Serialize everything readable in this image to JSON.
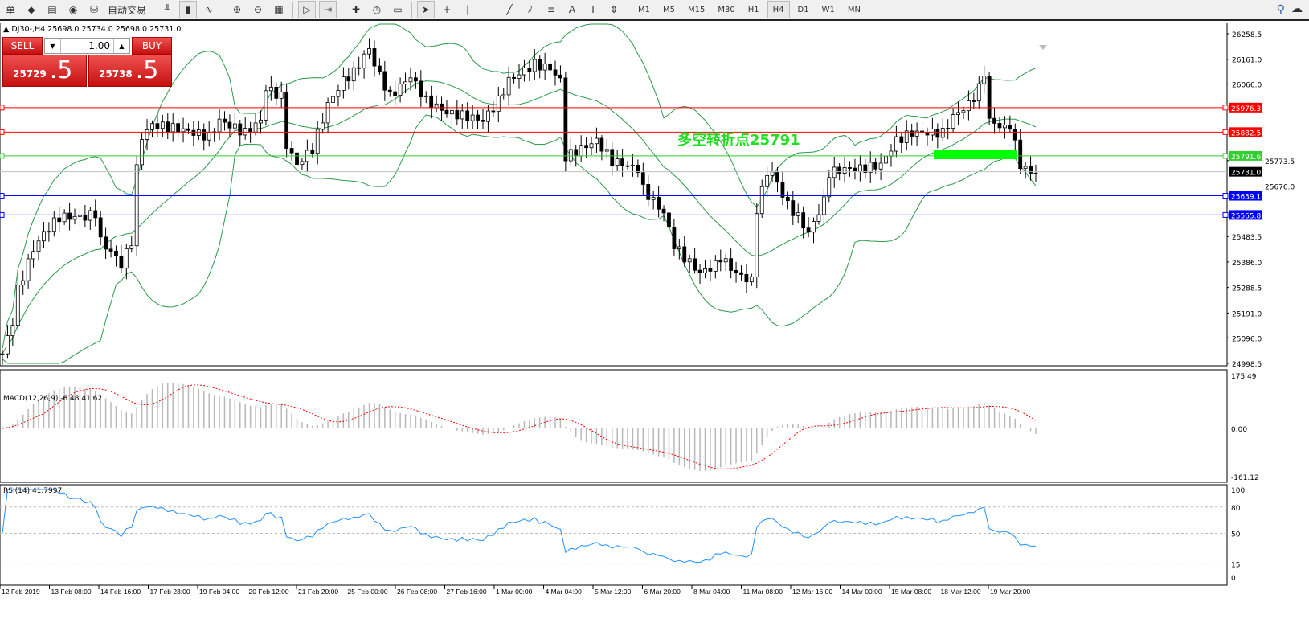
{
  "toolbar": {
    "menu_tail": "单",
    "auto_trading": "自动交易",
    "icons": [
      "market-watch-icon",
      "navigator-icon",
      "signals-icon",
      "autotrading-icon",
      "bar-chart-icon",
      "candlestick-icon",
      "line-chart-icon",
      "zoom-in-icon",
      "zoom-out-icon",
      "tile-windows-icon",
      "auto-scroll-icon",
      "chart-shift-icon",
      "new-chart-icon",
      "periodicity-icon",
      "templates-icon",
      "cursor-icon",
      "crosshair-icon",
      "vertical-line-icon",
      "horizontal-line-icon",
      "trendline-icon",
      "equidistant-channel-icon",
      "fibonacci-icon",
      "text-icon",
      "text-label-icon",
      "arrows-icon"
    ],
    "timeframes": [
      "M1",
      "M5",
      "M15",
      "M30",
      "H1",
      "H4",
      "D1",
      "W1",
      "MN"
    ],
    "active_timeframe": "H4"
  },
  "chart": {
    "symbol_info": "DJ30-,H4  25698.0 25734.0 25698.0 25731.0",
    "annotation": "多空转折点25791",
    "annotation_color": "#22dd22",
    "zone_color": "#00ff00",
    "price_axis": [
      "26258.5",
      "26161.0",
      "26066.0",
      "25773.5",
      "25676.0",
      "25483.5",
      "25386.0",
      "25288.5",
      "25191.0",
      "25096.0",
      "24998.5"
    ],
    "levels": [
      {
        "price": "25976.3",
        "color": "#ff0000"
      },
      {
        "price": "25882.5",
        "color": "#ff0000"
      },
      {
        "price": "25791.6",
        "color": "#33cc33"
      },
      {
        "price": "25731.0",
        "color": "#000000"
      },
      {
        "price": "25639.1",
        "color": "#0000ff"
      },
      {
        "price": "25565.8",
        "color": "#0000ff"
      }
    ],
    "time_axis": [
      "12 Feb 2019",
      "13 Feb 08:00",
      "14 Feb 16:00",
      "17 Feb 23:00",
      "19 Feb 04:00",
      "20 Feb 12:00",
      "21 Feb 20:00",
      "25 Feb 00:00",
      "26 Feb 08:00",
      "27 Feb 16:00",
      "1 Mar 00:00",
      "4 Mar 04:00",
      "5 Mar 12:00",
      "6 Mar 20:00",
      "8 Mar 04:00",
      "11 Mar 08:00",
      "12 Mar 16:00",
      "14 Mar 00:00",
      "15 Mar 08:00",
      "18 Mar 12:00",
      "19 Mar 20:00"
    ]
  },
  "trade_panel": {
    "sell_label": "SELL",
    "buy_label": "BUY",
    "lot": "1.00",
    "sell_price_main": "25729",
    "sell_price_pip": ".5",
    "buy_price_main": "25738",
    "buy_price_pip": ".5"
  },
  "macd": {
    "label": "MACD(12,26,9) -6.48 41.62",
    "axis": [
      "175.49",
      "0.00",
      "-161.12"
    ]
  },
  "rsi": {
    "label": "RSI(14) 41.7997",
    "axis": [
      "100",
      "80",
      "50",
      "15",
      "0"
    ]
  },
  "chart_data": {
    "type": "candlestick",
    "symbol": "DJ30-",
    "timeframe": "H4",
    "ylim": [
      24998.5,
      26258.5
    ],
    "close_waypoints": [
      [
        0,
        25035
      ],
      [
        2,
        25158
      ],
      [
        3,
        25281
      ],
      [
        6,
        25435
      ],
      [
        8,
        25496
      ],
      [
        11,
        25558
      ],
      [
        16,
        25558
      ],
      [
        18,
        25573
      ],
      [
        19,
        25466
      ],
      [
        22,
        25404
      ],
      [
        23,
        25374
      ],
      [
        25,
        25466
      ],
      [
        26,
        25742
      ],
      [
        27,
        25865
      ],
      [
        29,
        25911
      ],
      [
        34,
        25896
      ],
      [
        40,
        25865
      ],
      [
        42,
        25927
      ],
      [
        47,
        25880
      ],
      [
        50,
        25927
      ],
      [
        51,
        26050
      ],
      [
        54,
        26019
      ],
      [
        55,
        25834
      ],
      [
        57,
        25758
      ],
      [
        60,
        25819
      ],
      [
        63,
        25988
      ],
      [
        66,
        26080
      ],
      [
        68,
        26111
      ],
      [
        71,
        26203
      ],
      [
        72,
        26142
      ],
      [
        75,
        26019
      ],
      [
        79,
        26096
      ],
      [
        82,
        26003
      ],
      [
        86,
        25957
      ],
      [
        90,
        25942
      ],
      [
        93,
        25927
      ],
      [
        96,
        26003
      ],
      [
        98,
        26080
      ],
      [
        103,
        26142
      ],
      [
        106,
        26126
      ],
      [
        108,
        26080
      ],
      [
        109,
        25788
      ],
      [
        112,
        25819
      ],
      [
        115,
        25850
      ],
      [
        118,
        25773
      ],
      [
        123,
        25742
      ],
      [
        124,
        25665
      ],
      [
        128,
        25573
      ],
      [
        130,
        25450
      ],
      [
        132,
        25404
      ],
      [
        135,
        25343
      ],
      [
        138,
        25374
      ],
      [
        139,
        25404
      ],
      [
        142,
        25343
      ],
      [
        145,
        25312
      ],
      [
        146,
        25589
      ],
      [
        148,
        25727
      ],
      [
        149,
        25727
      ],
      [
        152,
        25604
      ],
      [
        154,
        25558
      ],
      [
        156,
        25496
      ],
      [
        159,
        25619
      ],
      [
        160,
        25727
      ],
      [
        163,
        25742
      ],
      [
        166,
        25742
      ],
      [
        170,
        25758
      ],
      [
        173,
        25850
      ],
      [
        176,
        25880
      ],
      [
        179,
        25880
      ],
      [
        182,
        25880
      ],
      [
        184,
        25942
      ],
      [
        187,
        25988
      ],
      [
        189,
        26050
      ],
      [
        190,
        26111
      ],
      [
        191,
        25927
      ],
      [
        194,
        25896
      ],
      [
        195,
        25911
      ],
      [
        197,
        25758
      ],
      [
        199,
        25727
      ],
      [
        200,
        25731
      ]
    ]
  }
}
